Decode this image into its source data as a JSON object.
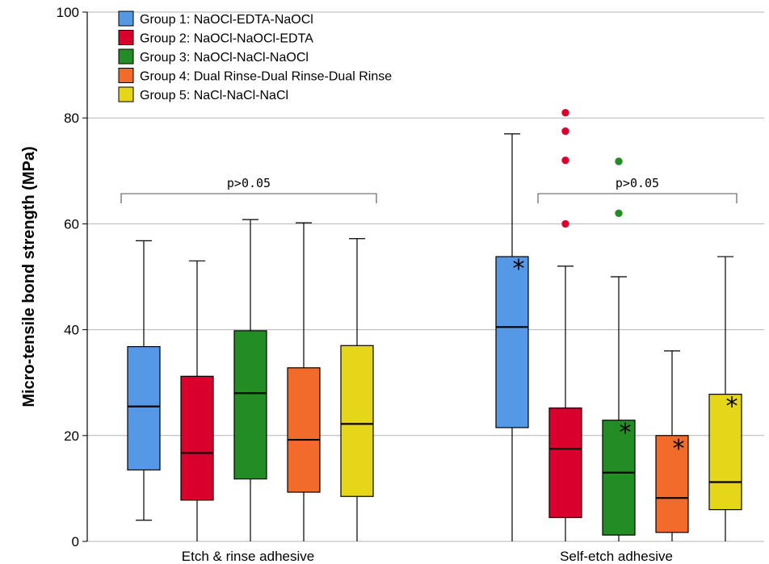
{
  "chart_data": {
    "type": "box",
    "ylabel": "Micro-tensile bond strength (MPa)",
    "xlabel": "",
    "ylim": [
      0,
      100
    ],
    "yticks": [
      "0",
      "20",
      "40",
      "60",
      "80",
      "100"
    ],
    "grid": "horizontal",
    "legend_position": "top-left",
    "categories": [
      "Etch & rinse adhesive",
      "Self-etch adhesive"
    ],
    "series": [
      {
        "name": "Group 1: NaOCl-EDTA-NaOCl",
        "color": "#5599e6",
        "boxes": [
          {
            "min": 4,
            "q1": 13.5,
            "median": 25.5,
            "q3": 36.8,
            "max": 56.8,
            "outliers": [],
            "mark": ""
          },
          {
            "min": 0,
            "q1": 21.5,
            "median": 40.5,
            "q3": 53.8,
            "max": 77,
            "outliers": [],
            "mark": "*",
            "mark_y": 52
          }
        ]
      },
      {
        "name": "Group 2: NaOCl-NaOCl-EDTA",
        "color": "#d9002d",
        "boxes": [
          {
            "min": 0,
            "q1": 7.8,
            "median": 16.7,
            "q3": 31.2,
            "max": 53,
            "outliers": [],
            "mark": ""
          },
          {
            "min": 0,
            "q1": 4.5,
            "median": 17.5,
            "q3": 25.2,
            "max": 52,
            "outliers": [
              60,
              72,
              77.5,
              81
            ],
            "mark": ""
          }
        ]
      },
      {
        "name": "Group 3: NaOCl-NaCl-NaOCl",
        "color": "#248c24",
        "boxes": [
          {
            "min": 0,
            "q1": 11.8,
            "median": 28,
            "q3": 39.8,
            "max": 60.8,
            "outliers": [],
            "mark": ""
          },
          {
            "min": 0,
            "q1": 1.2,
            "median": 13,
            "q3": 22.9,
            "max": 50,
            "outliers": [
              62,
              71.8
            ],
            "mark": "*",
            "mark_y": 21
          }
        ]
      },
      {
        "name": "Group 4: Dual Rinse-Dual Rinse-Dual Rinse",
        "color": "#f26b2b",
        "boxes": [
          {
            "min": 0,
            "q1": 9.3,
            "median": 19.2,
            "q3": 32.8,
            "max": 60.2,
            "outliers": [],
            "mark": ""
          },
          {
            "min": 0,
            "q1": 1.7,
            "median": 8.2,
            "q3": 20,
            "max": 36,
            "outliers": [],
            "mark": "*",
            "mark_y": 18
          }
        ]
      },
      {
        "name": "Group 5: NaCl-NaCl-NaCl",
        "color": "#e6d61a",
        "boxes": [
          {
            "min": 0,
            "q1": 8.5,
            "median": 22.2,
            "q3": 37,
            "max": 57.2,
            "outliers": [],
            "mark": ""
          },
          {
            "min": 0,
            "q1": 6,
            "median": 11.2,
            "q3": 27.8,
            "max": 53.8,
            "outliers": [],
            "mark": "*",
            "mark_y": 26
          }
        ]
      }
    ],
    "annotations": [
      {
        "text": "p>0.05",
        "category": 0
      },
      {
        "text": "p>0.05",
        "category": 1
      }
    ]
  }
}
